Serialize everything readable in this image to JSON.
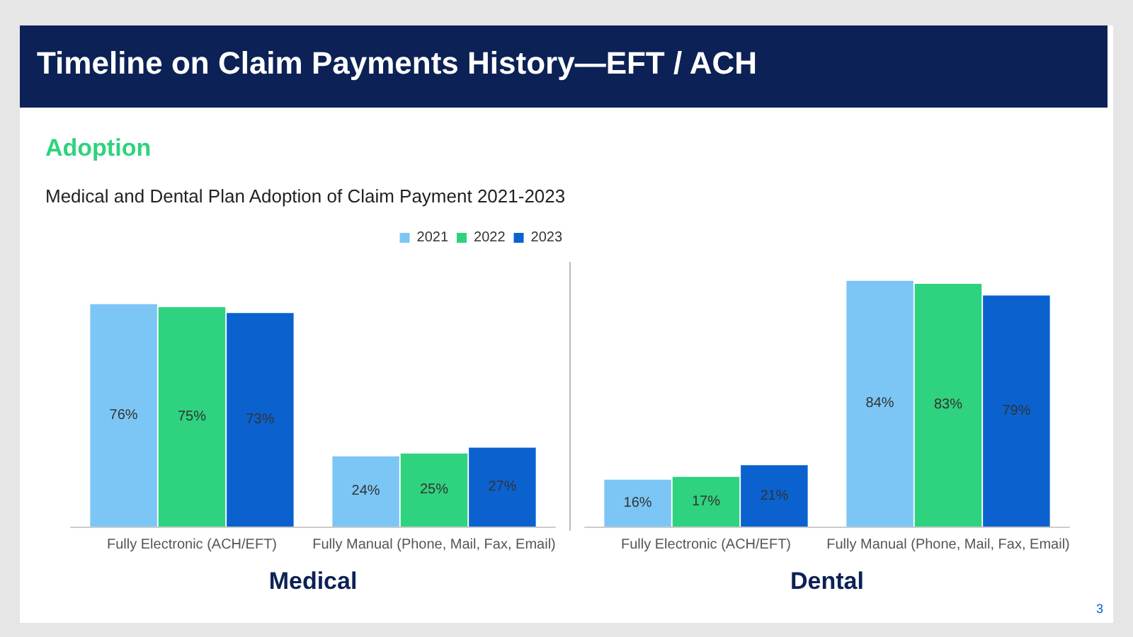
{
  "chart_data": [
    {
      "type": "bar",
      "title": "Timeline on Claim Payments History—EFT / ACH",
      "subtitle": "Adoption",
      "xlabel": "Medical",
      "annotations": [
        "Medical and Dental Plan Adoption of Claim Payment 2021-2023",
        "3"
      ],
      "categories": [
        "Fully Electronic (ACH/EFT)",
        "Fully Manual (Phone, Mail, Fax, Email)"
      ],
      "series": [
        {
          "name": "2021",
          "color": "#7cc6f6",
          "values": [
            76,
            24
          ],
          "value_labels": [
            "76%",
            "24%"
          ]
        },
        {
          "name": "2022",
          "color": "#2fd27f",
          "values": [
            75,
            25
          ],
          "value_labels": [
            "75%",
            "25%"
          ]
        },
        {
          "name": "2023",
          "color": "#0b62cf",
          "values": [
            73,
            27
          ],
          "value_labels": [
            "73%",
            "27%"
          ]
        }
      ],
      "ylim": [
        0,
        90
      ],
      "tick_labels": "x",
      "legend": "top"
    },
    {
      "type": "bar",
      "xlabel": "Dental",
      "categories": [
        "Fully Electronic (ACH/EFT)",
        "Fully Manual (Phone, Mail, Fax, Email)"
      ],
      "series": [
        {
          "color": "#7cc6f6",
          "values": [
            16,
            84
          ],
          "value_labels": [
            "16%",
            "84%"
          ]
        },
        {
          "color": "#2fd27f",
          "values": [
            17,
            83
          ],
          "value_labels": [
            "17%",
            "83%"
          ]
        },
        {
          "color": "#0b62cf",
          "values": [
            21,
            79
          ],
          "value_labels": [
            "21%",
            "79%"
          ]
        }
      ],
      "ylim": [
        0,
        90
      ],
      "tick_labels": "x"
    }
  ]
}
